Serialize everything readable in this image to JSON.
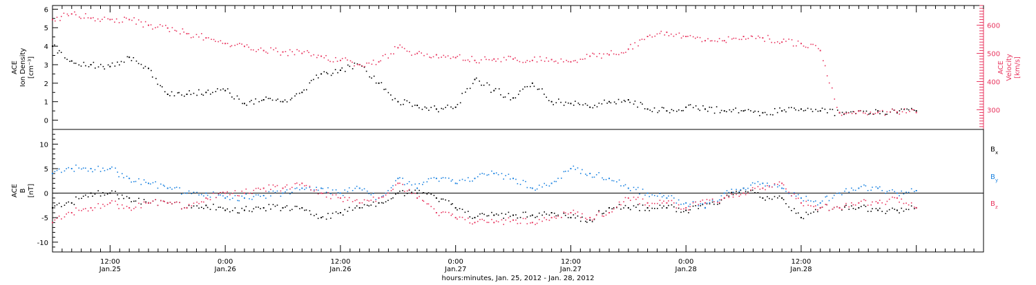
{
  "chart_data": [
    {
      "type": "scatter",
      "panel": "top",
      "left_axis_label": [
        "ACE",
        "Ion Density",
        "[cm⁻³]"
      ],
      "right_axis_label": [
        "ACE",
        "Velocity",
        "[km/s]"
      ],
      "left_ylim": [
        -0.5,
        6.2
      ],
      "left_ticks": [
        0,
        1,
        2,
        3,
        4,
        5,
        6
      ],
      "right_ylim": [
        230,
        670
      ],
      "right_ticks": [
        300,
        400,
        500,
        600
      ],
      "series": [
        {
          "axis": "left",
          "color": "#000000",
          "x_hours": [
            6,
            8,
            10,
            12,
            14,
            16,
            18,
            20,
            22,
            24,
            26,
            28,
            30,
            32,
            34,
            36,
            38,
            40,
            42,
            44,
            46,
            48,
            50,
            52,
            54,
            56,
            58,
            60,
            62,
            64,
            66,
            68,
            70,
            72,
            74,
            76,
            78,
            80,
            82,
            84,
            86,
            88,
            90,
            92,
            94,
            96
          ],
          "values": [
            4.0,
            3.2,
            3.0,
            2.9,
            3.4,
            2.8,
            1.4,
            1.4,
            1.5,
            1.6,
            0.9,
            1.1,
            1.0,
            1.5,
            2.5,
            2.7,
            3.0,
            2.0,
            1.0,
            0.8,
            0.6,
            0.7,
            2.2,
            1.6,
            1.2,
            2.0,
            1.0,
            0.9,
            0.7,
            1.0,
            1.1,
            0.6,
            0.5,
            0.7,
            0.6,
            0.5,
            0.5,
            0.4,
            0.5,
            0.6,
            0.5,
            0.4,
            0.5,
            0.5,
            0.4,
            0.5
          ]
        },
        {
          "axis": "right",
          "color": "#e8345e",
          "x_hours": [
            6,
            8,
            10,
            12,
            14,
            16,
            18,
            20,
            22,
            24,
            26,
            28,
            30,
            32,
            34,
            36,
            38,
            40,
            42,
            44,
            46,
            48,
            50,
            52,
            54,
            56,
            58,
            60,
            62,
            64,
            66,
            68,
            70,
            72,
            74,
            76,
            78,
            80,
            82,
            84,
            86,
            88,
            90,
            92,
            94,
            96
          ],
          "values": [
            620,
            640,
            625,
            620,
            620,
            600,
            590,
            570,
            555,
            535,
            525,
            510,
            505,
            500,
            490,
            475,
            460,
            470,
            520,
            500,
            495,
            485,
            475,
            480,
            480,
            475,
            478,
            470,
            490,
            495,
            515,
            560,
            575,
            560,
            545,
            545,
            560,
            555,
            540,
            535,
            510,
            290,
            295,
            290,
            292,
            290
          ]
        }
      ]
    },
    {
      "type": "scatter",
      "panel": "bottom",
      "left_axis_label": [
        "ACE",
        "B",
        "[nT]"
      ],
      "ylim": [
        -12,
        13
      ],
      "ticks": [
        -10,
        -5,
        0,
        5,
        10
      ],
      "reference_line": 0,
      "legend": [
        {
          "main": "B",
          "sub": "x",
          "color": "#000000"
        },
        {
          "main": "B",
          "sub": "y",
          "color": "#1a82e0"
        },
        {
          "main": "B",
          "sub": "z",
          "color": "#e8345e"
        }
      ],
      "series": [
        {
          "name": "Bx",
          "color": "#000000",
          "x_hours": [
            6,
            8,
            10,
            12,
            14,
            16,
            18,
            20,
            22,
            24,
            26,
            28,
            30,
            32,
            34,
            36,
            38,
            40,
            42,
            44,
            46,
            48,
            50,
            52,
            54,
            56,
            58,
            60,
            62,
            64,
            66,
            68,
            70,
            72,
            74,
            76,
            78,
            80,
            82,
            84,
            86,
            88,
            90,
            92,
            94,
            96
          ],
          "values": [
            -3,
            -2,
            0,
            0,
            -1,
            -2,
            -2,
            -3,
            -2.5,
            -3.5,
            -3.5,
            -3,
            -3,
            -3,
            -5,
            -4,
            -3,
            -2,
            0,
            0,
            -1,
            -3,
            -5,
            -4.5,
            -4.5,
            -4.5,
            -4,
            -5,
            -5.5,
            -3,
            -3,
            -3,
            -3,
            -3.5,
            -3,
            -1,
            1,
            -1,
            -1,
            -5,
            -3,
            -3,
            -3,
            -3.5,
            -3.5,
            -3
          ]
        },
        {
          "name": "By",
          "color": "#1a82e0",
          "x_hours": [
            6,
            8,
            10,
            12,
            14,
            16,
            18,
            20,
            22,
            24,
            26,
            28,
            30,
            32,
            34,
            36,
            38,
            40,
            42,
            44,
            46,
            48,
            50,
            52,
            54,
            56,
            58,
            60,
            62,
            64,
            66,
            68,
            70,
            72,
            74,
            76,
            78,
            80,
            82,
            84,
            86,
            88,
            90,
            92,
            94,
            96
          ],
          "values": [
            4,
            5,
            5,
            5,
            3,
            2,
            1,
            0,
            0,
            -1,
            -1,
            -0.5,
            0,
            1,
            1,
            0,
            1,
            -1,
            3,
            1,
            3,
            2,
            3,
            4,
            3,
            1,
            2,
            5,
            4,
            3,
            1,
            0,
            -1,
            -2,
            -3,
            0,
            1,
            2,
            1,
            -1,
            -2,
            0,
            1,
            1,
            0,
            0.5
          ]
        },
        {
          "name": "Bz",
          "color": "#e8345e",
          "x_hours": [
            6,
            8,
            10,
            12,
            14,
            16,
            18,
            20,
            22,
            24,
            26,
            28,
            30,
            32,
            34,
            36,
            38,
            40,
            42,
            44,
            46,
            48,
            50,
            52,
            54,
            56,
            58,
            60,
            62,
            64,
            66,
            68,
            70,
            72,
            74,
            76,
            78,
            80,
            82,
            84,
            86,
            88,
            90,
            92,
            94,
            96
          ],
          "values": [
            -6,
            -4,
            -3,
            -2,
            -3,
            -2,
            -2,
            -3,
            -1,
            0,
            0,
            1,
            1,
            2,
            0,
            -1,
            -2,
            -1,
            2,
            -1,
            -4,
            -5,
            -6,
            -6,
            -5.5,
            -6,
            -5,
            -4,
            -5,
            -4,
            -1,
            -2,
            -2,
            -3,
            -2,
            -1,
            0,
            1,
            2,
            -2,
            -3,
            -3,
            -2,
            -2,
            -1,
            -3
          ]
        }
      ]
    }
  ],
  "x_axis": {
    "xlim_hours": [
      6,
      103
    ],
    "ticks": [
      {
        "hours": 12,
        "time": "12:00",
        "date": "Jan.25"
      },
      {
        "hours": 24,
        "time": "0:00",
        "date": "Jan.26"
      },
      {
        "hours": 36,
        "time": "12:00",
        "date": "Jan.26"
      },
      {
        "hours": 48,
        "time": "0:00",
        "date": "Jan.27"
      },
      {
        "hours": 60,
        "time": "12:00",
        "date": "Jan.27"
      },
      {
        "hours": 72,
        "time": "0:00",
        "date": "Jan.28"
      },
      {
        "hours": 84,
        "time": "12:00",
        "date": "Jan.28"
      }
    ],
    "label": "hours:minutes, Jan. 25, 2012 - Jan. 28, 2012"
  }
}
